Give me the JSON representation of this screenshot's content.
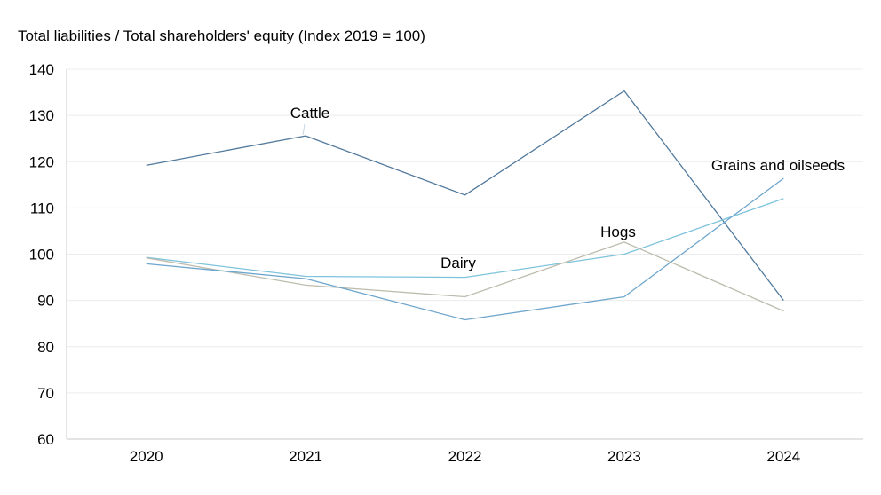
{
  "chart_data": {
    "type": "line",
    "title": "Total liabilities / Total shareholders' equity (Index 2019 = 100)",
    "categories": [
      "2020",
      "2021",
      "2022",
      "2023",
      "2024"
    ],
    "ylim": [
      60,
      140
    ],
    "yticks": [
      60,
      70,
      80,
      90,
      100,
      110,
      120,
      130,
      140
    ],
    "grid": true,
    "legend": "none (direct labels)",
    "series": [
      {
        "name": "Cattle",
        "color": "#51799c",
        "values": [
          119.2,
          125.6,
          112.8,
          135.3,
          90.0
        ]
      },
      {
        "name": "Dairy",
        "color": "#7ec3dc",
        "values": [
          99.3,
          95.2,
          95.0,
          100.0,
          112.0
        ]
      },
      {
        "name": "Hogs",
        "color": "#bdbcae",
        "values": [
          99.2,
          93.3,
          90.8,
          102.6,
          87.7
        ]
      },
      {
        "name": "Grains and oilseeds",
        "color": "#6fa6cd",
        "values": [
          97.9,
          94.7,
          85.8,
          90.8,
          116.4
        ]
      }
    ]
  }
}
